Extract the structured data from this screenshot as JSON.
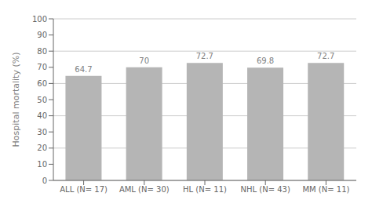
{
  "chart_data": {
    "type": "bar",
    "categories": [
      "ALL (N= 17)",
      "AML (N= 30)",
      "HL (N= 11)",
      "NHL (N= 43)",
      "MM (N= 11)"
    ],
    "values": [
      64.7,
      70.0,
      72.7,
      69.8,
      72.7
    ],
    "color": "#b5b5b5",
    "ylabel": "Hospital mortality (%)",
    "ylim": [
      0,
      100
    ],
    "yticks": [
      0,
      10,
      20,
      30,
      40,
      50,
      60,
      70,
      80,
      90,
      100
    ],
    "grid": true,
    "data_labels": true
  }
}
